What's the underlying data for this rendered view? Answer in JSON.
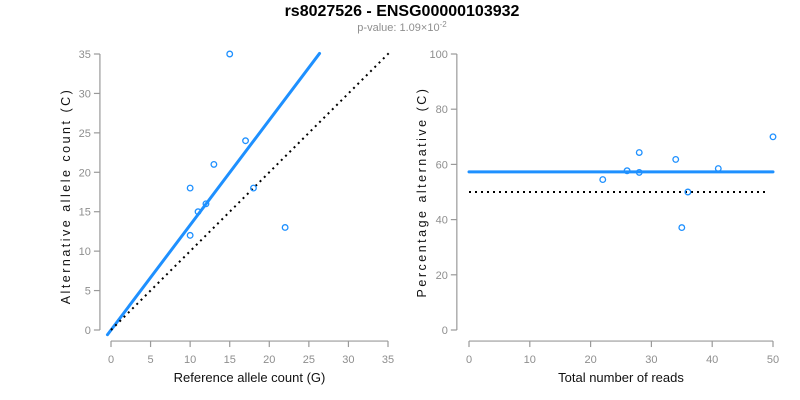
{
  "figure": {
    "title": "rs8027526 - ENSG00000103932",
    "subtitle_prefix": "p-value: 1.09×10",
    "subtitle_sup": "-2",
    "colors": {
      "accent_blue": "#1E90FF",
      "reference_black": "#000000",
      "axis_gray": "#9a9a9a",
      "tick_label_gray": "#8e8e8e"
    }
  },
  "chart_data": [
    {
      "type": "scatter",
      "xlabel": "Reference allele count (G)",
      "ylabel": "Alternative allele count (C)",
      "xlim": [
        0,
        35
      ],
      "ylim": [
        0,
        35
      ],
      "xticks": [
        0,
        5,
        10,
        15,
        20,
        25,
        30,
        35
      ],
      "yticks": [
        0,
        5,
        10,
        15,
        20,
        25,
        30,
        35
      ],
      "grid": false,
      "legend": false,
      "point_color": "#1E90FF",
      "points": [
        [
          10,
          12
        ],
        [
          10,
          18
        ],
        [
          11,
          15
        ],
        [
          12,
          16
        ],
        [
          13,
          21
        ],
        [
          15,
          35
        ],
        [
          17,
          24
        ],
        [
          18,
          18
        ],
        [
          22,
          13
        ]
      ],
      "lines": [
        {
          "name": "regression-line",
          "style": "solid",
          "color": "#1E90FF",
          "width": 3,
          "slope": 1.331,
          "intercept": 0,
          "x_range": [
            -0.45,
            26.35
          ]
        },
        {
          "name": "identity-line",
          "style": "dotted",
          "color": "#000000",
          "width": 2,
          "slope": 1,
          "intercept": 0,
          "x_range": [
            0,
            35.2
          ]
        }
      ]
    },
    {
      "type": "scatter",
      "xlabel": "Total number of reads",
      "ylabel": "Percentage alternative (C)",
      "xlim": [
        0,
        50
      ],
      "ylim": [
        0,
        100
      ],
      "xticks": [
        0,
        10,
        20,
        30,
        40,
        50
      ],
      "yticks": [
        0,
        20,
        40,
        60,
        80,
        100
      ],
      "grid": false,
      "legend": false,
      "point_color": "#1E90FF",
      "points": [
        [
          22,
          54.5
        ],
        [
          26,
          57.7
        ],
        [
          28,
          57.1
        ],
        [
          28,
          64.3
        ],
        [
          34,
          61.8
        ],
        [
          35,
          37.1
        ],
        [
          36,
          50
        ],
        [
          41,
          58.5
        ],
        [
          50,
          70
        ]
      ],
      "lines": [
        {
          "name": "mean-percentage-line",
          "style": "solid",
          "color": "#1E90FF",
          "width": 3,
          "slope": 0,
          "intercept": 57.3,
          "x_range": [
            0,
            50
          ]
        },
        {
          "name": "expected-50-line",
          "style": "dotted",
          "color": "#000000",
          "width": 2,
          "slope": 0,
          "intercept": 50,
          "x_range": [
            0,
            49.3
          ]
        }
      ]
    }
  ]
}
